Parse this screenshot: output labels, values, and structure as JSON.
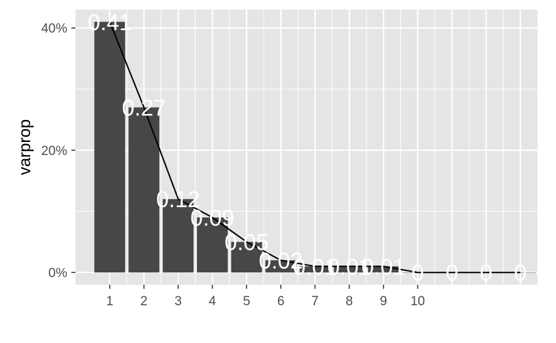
{
  "chart_data": {
    "type": "bar",
    "title": "",
    "xlabel": "",
    "ylabel": "varprop",
    "x_tick_labels": [
      "1",
      "2",
      "3",
      "4",
      "5",
      "6",
      "7",
      "8",
      "9",
      "10"
    ],
    "y_tick_labels": [
      "0%",
      "20%",
      "40%"
    ],
    "y_ticks": [
      0,
      0.2,
      0.4
    ],
    "ylim": [
      -0.02,
      0.43
    ],
    "xlim": [
      0,
      13.5
    ],
    "x": [
      1,
      2,
      3,
      4,
      5,
      6,
      7,
      8,
      9,
      10,
      11,
      12,
      13
    ],
    "values": [
      0.41,
      0.27,
      0.12,
      0.09,
      0.05,
      0.02,
      0.01,
      0.01,
      0.01,
      0,
      0,
      0,
      0
    ],
    "data_labels": [
      "0.41",
      "0.27",
      "0.12",
      "0.09",
      "0.05",
      "0.02",
      "0.01",
      "0.01",
      "0.01",
      "0",
      "0",
      "0",
      "0"
    ],
    "series": [
      {
        "type": "bar",
        "values": [
          0.41,
          0.27,
          0.12,
          0.09,
          0.05,
          0.02,
          0.01,
          0.01,
          0.01,
          0,
          0,
          0,
          0
        ]
      },
      {
        "type": "line",
        "values": [
          0.41,
          0.27,
          0.12,
          0.09,
          0.05,
          0.02,
          0.01,
          0.01,
          0.01,
          0,
          0,
          0,
          0
        ]
      }
    ],
    "grid": true,
    "legend": "none",
    "colors": {
      "panel_background": "#e5e5e5",
      "grid": "#ffffff",
      "bar_fill": "#474747",
      "line": "#000000",
      "data_label": "#ffffff",
      "tick_label": "#4d4d4d",
      "axis_title": "#000000"
    }
  }
}
